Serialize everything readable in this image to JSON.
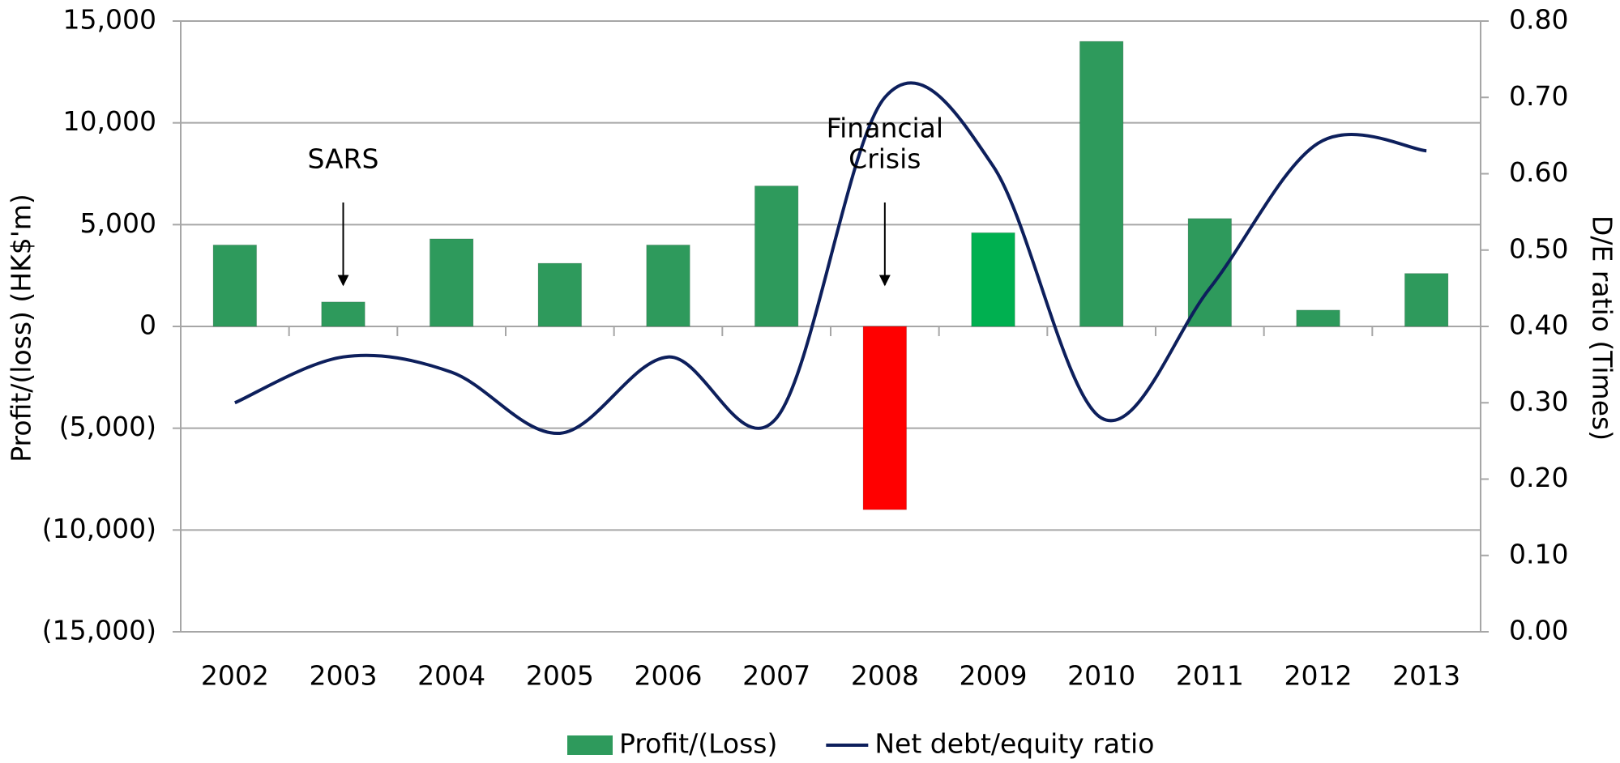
{
  "chart_data": {
    "type": "bar-line",
    "categories": [
      "2002",
      "2003",
      "2004",
      "2005",
      "2006",
      "2007",
      "2008",
      "2009",
      "2010",
      "2011",
      "2012",
      "2013"
    ],
    "series": [
      {
        "name": "Profit/(Loss)",
        "type": "bar",
        "color": "#2e9a5c",
        "colors": [
          "#2e9a5c",
          "#2e9a5c",
          "#2e9a5c",
          "#2e9a5c",
          "#2e9a5c",
          "#2e9a5c",
          "#ff0000",
          "#00b050",
          "#2e9a5c",
          "#2e9a5c",
          "#2e9a5c",
          "#2e9a5c"
        ],
        "values": [
          4000,
          1200,
          4300,
          3100,
          4000,
          6900,
          -9000,
          4600,
          14000,
          5300,
          800,
          2600
        ]
      },
      {
        "name": "Net debt/equity ratio",
        "type": "line",
        "axis": "y2",
        "color": "#0d1f5c",
        "values": [
          0.3,
          0.36,
          0.34,
          0.26,
          0.36,
          0.28,
          0.7,
          0.61,
          0.28,
          0.45,
          0.64,
          0.63
        ]
      }
    ],
    "ylabel": "Profit/(loss) (HK$'m)",
    "y2label": "D/E ratio  (Times)",
    "ylim": [
      -15000,
      15000
    ],
    "yticks": [
      {
        "value": -15000,
        "label": "(15,000)"
      },
      {
        "value": -10000,
        "label": "(10,000)"
      },
      {
        "value": -5000,
        "label": "(5,000)"
      },
      0,
      {
        "value": 5000,
        "label": "5,000"
      },
      {
        "value": 10000,
        "label": "10,000"
      },
      {
        "value": 15000,
        "label": "15,000"
      }
    ],
    "y2lim": [
      0,
      0.8
    ],
    "y2ticks": [
      {
        "value": 0,
        "label": "0.00"
      },
      {
        "value": 0.1,
        "label": "0.10"
      },
      {
        "value": 0.2,
        "label": "0.20"
      },
      {
        "value": 0.3,
        "label": "0.30"
      },
      {
        "value": 0.4,
        "label": "0.40"
      },
      {
        "value": 0.5,
        "label": "0.50"
      },
      {
        "value": 0.6,
        "label": "0.60"
      },
      {
        "value": 0.7,
        "label": "0.70"
      },
      {
        "value": 0.8,
        "label": "0.80"
      }
    ],
    "grid": true,
    "legend": "bottom",
    "annotations": [
      {
        "category": "2003",
        "lines": [
          "SARS"
        ]
      },
      {
        "category": "2008",
        "lines": [
          "Financial",
          "Crisis"
        ]
      }
    ]
  }
}
